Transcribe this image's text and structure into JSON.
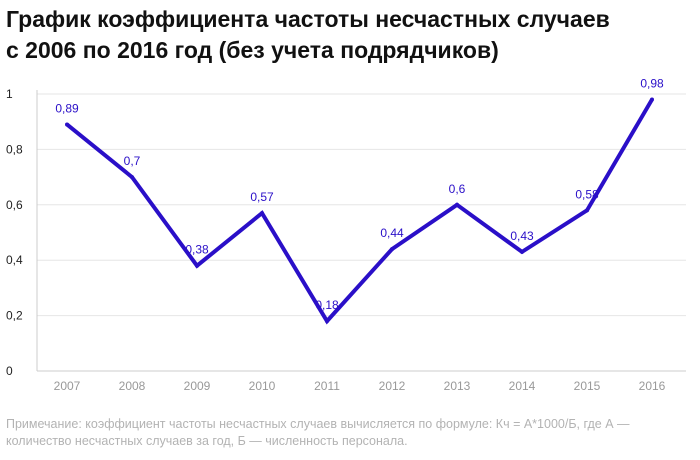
{
  "title": {
    "line1": "График коэффициента частоты несчастных случаев",
    "line2": "с 2006  по 2016 год (без учета подрядчиков)"
  },
  "note": "Примечание: коэффициент частоты несчастных случаев вычисляется по формуле: Кч = А*1000/Б, где А — количество несчастных случаев за год, Б — численность персонала.",
  "chart_data": {
    "type": "line",
    "x": [
      "2007",
      "2008",
      "2009",
      "2010",
      "2011",
      "2012",
      "2013",
      "2014",
      "2015",
      "2016"
    ],
    "series": [
      {
        "values": [
          0.89,
          0.7,
          0.38,
          0.57,
          0.18,
          0.44,
          0.6,
          0.43,
          0.58,
          0.98
        ],
        "labels": [
          "0,89",
          "0,7",
          "0,38",
          "0,57",
          "0,18",
          "0,44",
          "0,6",
          "0,43",
          "0,58",
          "0,98"
        ],
        "color": "#2a0fc8"
      }
    ],
    "ylim": [
      0,
      1
    ],
    "yticks": [
      0,
      0.2,
      0.4,
      0.6,
      0.8,
      1
    ],
    "ytick_labels": [
      "0",
      "0,2",
      "0,4",
      "0,6",
      "0,8",
      "1"
    ],
    "grid": true,
    "colors": {
      "line": "#2a0fc8",
      "grid": "#e6e6e6",
      "axis": "#cccccc"
    }
  }
}
